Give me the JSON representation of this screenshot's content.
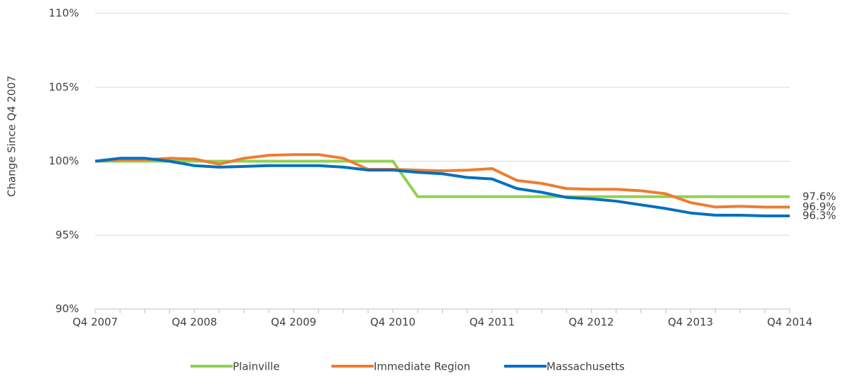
{
  "chart_data": {
    "type": "line",
    "y_label": "Change Since Q4 2007",
    "categories": [
      "Q4 2007",
      null,
      null,
      null,
      "Q4 2008",
      null,
      null,
      null,
      "Q4 2009",
      null,
      null,
      null,
      "Q4 2010",
      null,
      null,
      null,
      "Q4 2011",
      null,
      null,
      null,
      "Q4 2012",
      null,
      null,
      null,
      "Q4 2013",
      null,
      null,
      null,
      "Q4 2014"
    ],
    "ylim": [
      90,
      110
    ],
    "yticks": [
      {
        "value": 90,
        "label": "90%"
      },
      {
        "value": 95,
        "label": "95%"
      },
      {
        "value": 100,
        "label": "100%"
      },
      {
        "value": 105,
        "label": "105%"
      },
      {
        "value": 110,
        "label": "110%"
      }
    ],
    "grid": true,
    "legend": "bottom",
    "series": [
      {
        "name": "Plainville",
        "color": "#92d050",
        "values": [
          100,
          100,
          100,
          100,
          100,
          100,
          100,
          100,
          100,
          100,
          100,
          100,
          100,
          97.6,
          97.6,
          97.6,
          97.6,
          97.6,
          97.6,
          97.6,
          97.6,
          97.6,
          97.6,
          97.6,
          97.6,
          97.6,
          97.6,
          97.6,
          97.6
        ],
        "value_labels": [
          null,
          null,
          null,
          null,
          null,
          null,
          null,
          null,
          null,
          null,
          null,
          null,
          null,
          null,
          null,
          null,
          null,
          null,
          null,
          null,
          null,
          null,
          null,
          null,
          null,
          null,
          null,
          null,
          "97.6%"
        ]
      },
      {
        "name": "Immediate Region",
        "color": "#ed7d31",
        "values": [
          100,
          100.1,
          100.1,
          100.2,
          100.15,
          99.8,
          100.2,
          100.4,
          100.45,
          100.45,
          100.2,
          99.45,
          99.45,
          99.4,
          99.35,
          99.4,
          99.5,
          98.7,
          98.5,
          98.15,
          98.1,
          98.1,
          98.0,
          97.8,
          97.2,
          96.9,
          96.95,
          96.9,
          96.9
        ],
        "value_labels": [
          null,
          null,
          null,
          null,
          null,
          null,
          null,
          null,
          null,
          null,
          null,
          null,
          null,
          null,
          null,
          null,
          null,
          null,
          null,
          null,
          null,
          null,
          null,
          null,
          null,
          null,
          null,
          null,
          "96.9%"
        ]
      },
      {
        "name": "Massachusetts",
        "color": "#0070c0",
        "values": [
          100,
          100.2,
          100.2,
          100.0,
          99.7,
          99.6,
          99.65,
          99.7,
          99.7,
          99.7,
          99.6,
          99.4,
          99.4,
          99.25,
          99.15,
          98.9,
          98.8,
          98.15,
          97.9,
          97.55,
          97.45,
          97.3,
          97.05,
          96.8,
          96.5,
          96.35,
          96.35,
          96.3,
          96.3
        ],
        "value_labels": [
          null,
          null,
          null,
          null,
          null,
          null,
          null,
          null,
          null,
          null,
          null,
          null,
          null,
          null,
          null,
          null,
          null,
          null,
          null,
          null,
          null,
          null,
          null,
          null,
          null,
          null,
          null,
          null,
          "96.3%"
        ]
      }
    ]
  }
}
